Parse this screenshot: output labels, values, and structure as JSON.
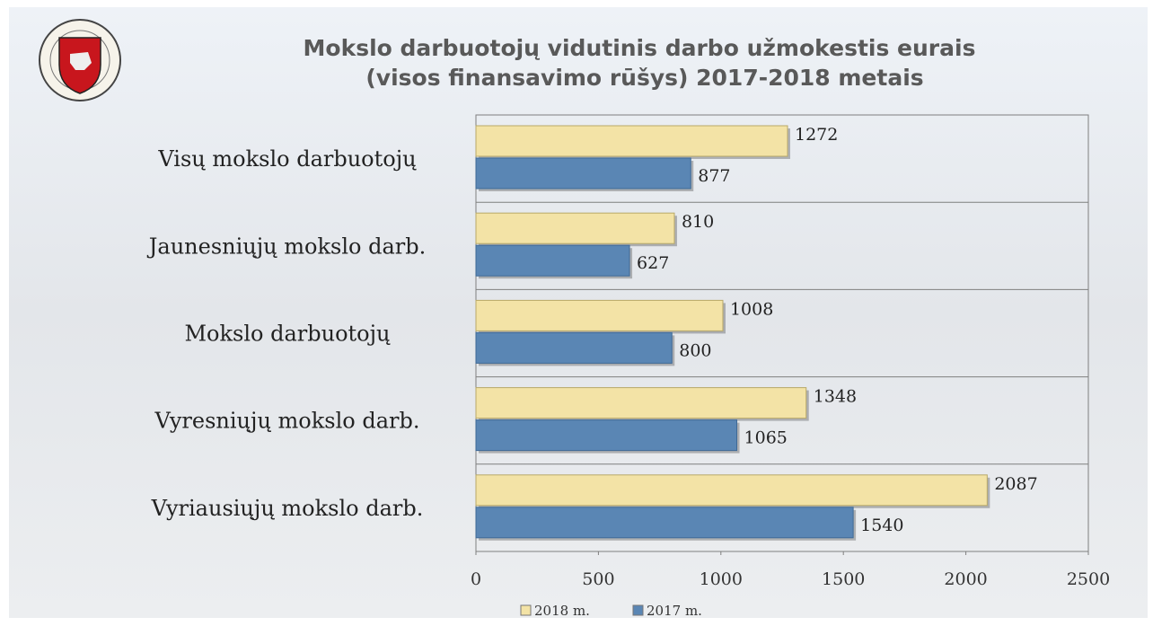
{
  "chart_data": {
    "type": "bar",
    "orientation": "horizontal",
    "title": [
      "Mokslo darbuotojų vidutinis darbo užmokestis eurais",
      "(visos finansavimo rūšys) 2017-2018  metais"
    ],
    "categories": [
      "Visų mokslo darbuotojų",
      "Jaunesniųjų mokslo darb.",
      "Mokslo darbuotojų",
      "Vyresniųjų mokslo darb.",
      "Vyriausiųjų mokslo darb."
    ],
    "series": [
      {
        "name": "2018 m.",
        "color": "#f3e3a6",
        "values": [
          1272,
          810,
          1008,
          1348,
          2087
        ]
      },
      {
        "name": "2017 m.",
        "color": "#5a86b4",
        "values": [
          877,
          627,
          800,
          1065,
          1540
        ]
      }
    ],
    "xlim": [
      0,
      2500
    ],
    "xticks": [
      0,
      500,
      1000,
      1500,
      2000,
      2500
    ],
    "legend": "bottom"
  }
}
